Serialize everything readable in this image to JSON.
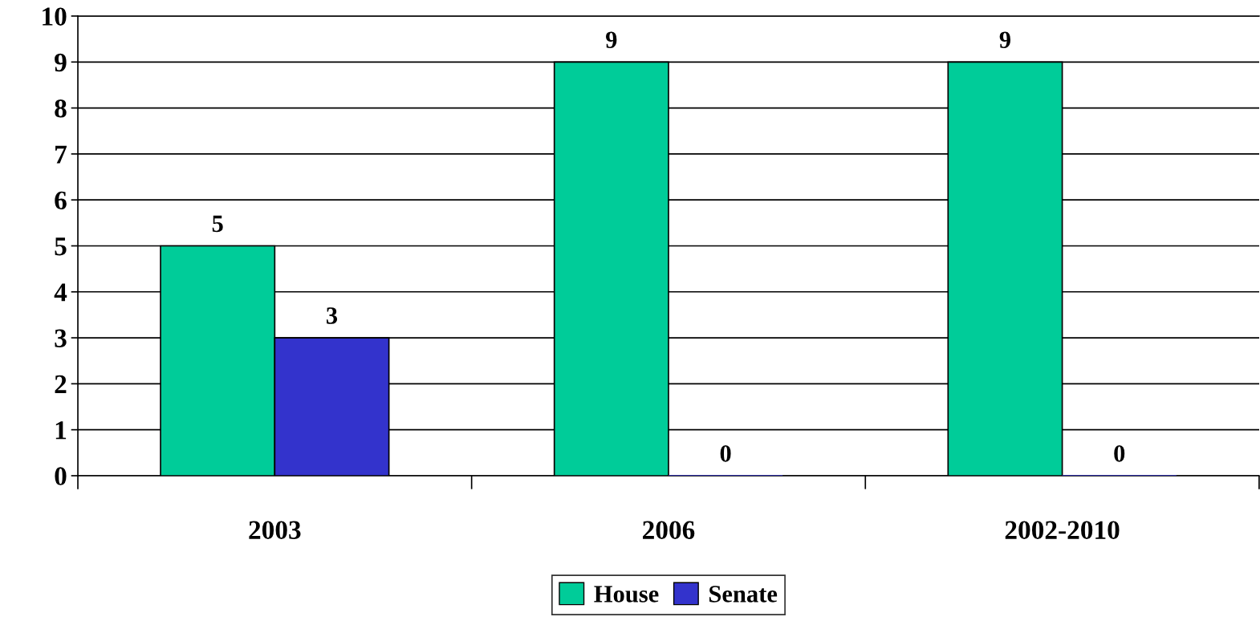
{
  "chart_data": {
    "type": "bar",
    "categories": [
      "2003",
      "2006",
      "2002-2010"
    ],
    "series": [
      {
        "name": "House",
        "color": "#00cc99",
        "values": [
          5,
          9,
          9
        ]
      },
      {
        "name": "Senate",
        "color": "#3333cc",
        "values": [
          3,
          0,
          0
        ]
      }
    ],
    "ylim": [
      0,
      10
    ],
    "yticks": [
      0,
      1,
      2,
      3,
      4,
      5,
      6,
      7,
      8,
      9,
      10
    ],
    "grid": "y",
    "legend": "bottom",
    "data_labels": true
  }
}
